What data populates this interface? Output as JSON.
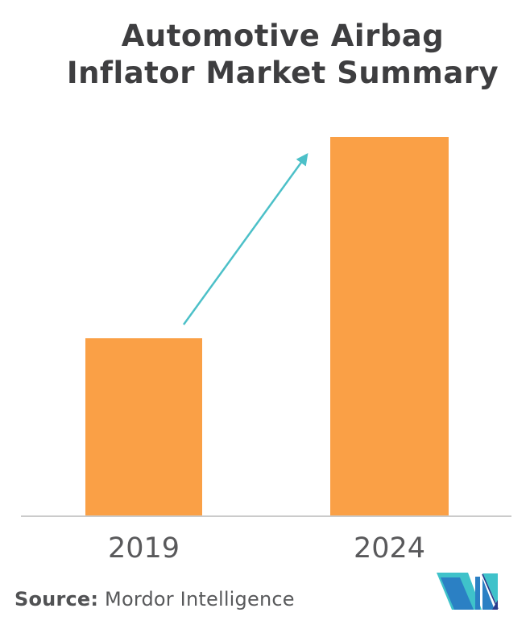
{
  "header": {
    "line1": "Automotive Airbag",
    "line2": "Inflator Market Summary"
  },
  "chart_data": {
    "type": "bar",
    "title": "Automotive Airbag Inflator Market Summary",
    "categories": [
      "2019",
      "2024"
    ],
    "values": [
      47,
      100
    ],
    "values_unit": "relative index (no y-axis values shown; 2024 bar ≈ 2.13× the 2019 bar)",
    "xlabel": "",
    "ylabel": "",
    "ylim": [
      0,
      110
    ],
    "grid": false,
    "legend": false,
    "bar_color": "#faa046",
    "axis_line_color": "#cbcbcb",
    "annotations": [
      {
        "type": "growth-arrow",
        "from": "top of 2019 bar",
        "to": "top of 2024 bar",
        "color": "#4cc0c8"
      }
    ]
  },
  "source": {
    "label": "Source:",
    "text": " Mordor Intelligence"
  },
  "logo": {
    "name": "mordor-intelligence-logo",
    "teal": "#3fc2ca",
    "blue": "#2b80c4",
    "navy": "#283b8b"
  },
  "colors": {
    "background": "#ffffff",
    "title_text": "#3e3e40",
    "axis_label_text": "#59595b",
    "source_text": "#58595b"
  }
}
